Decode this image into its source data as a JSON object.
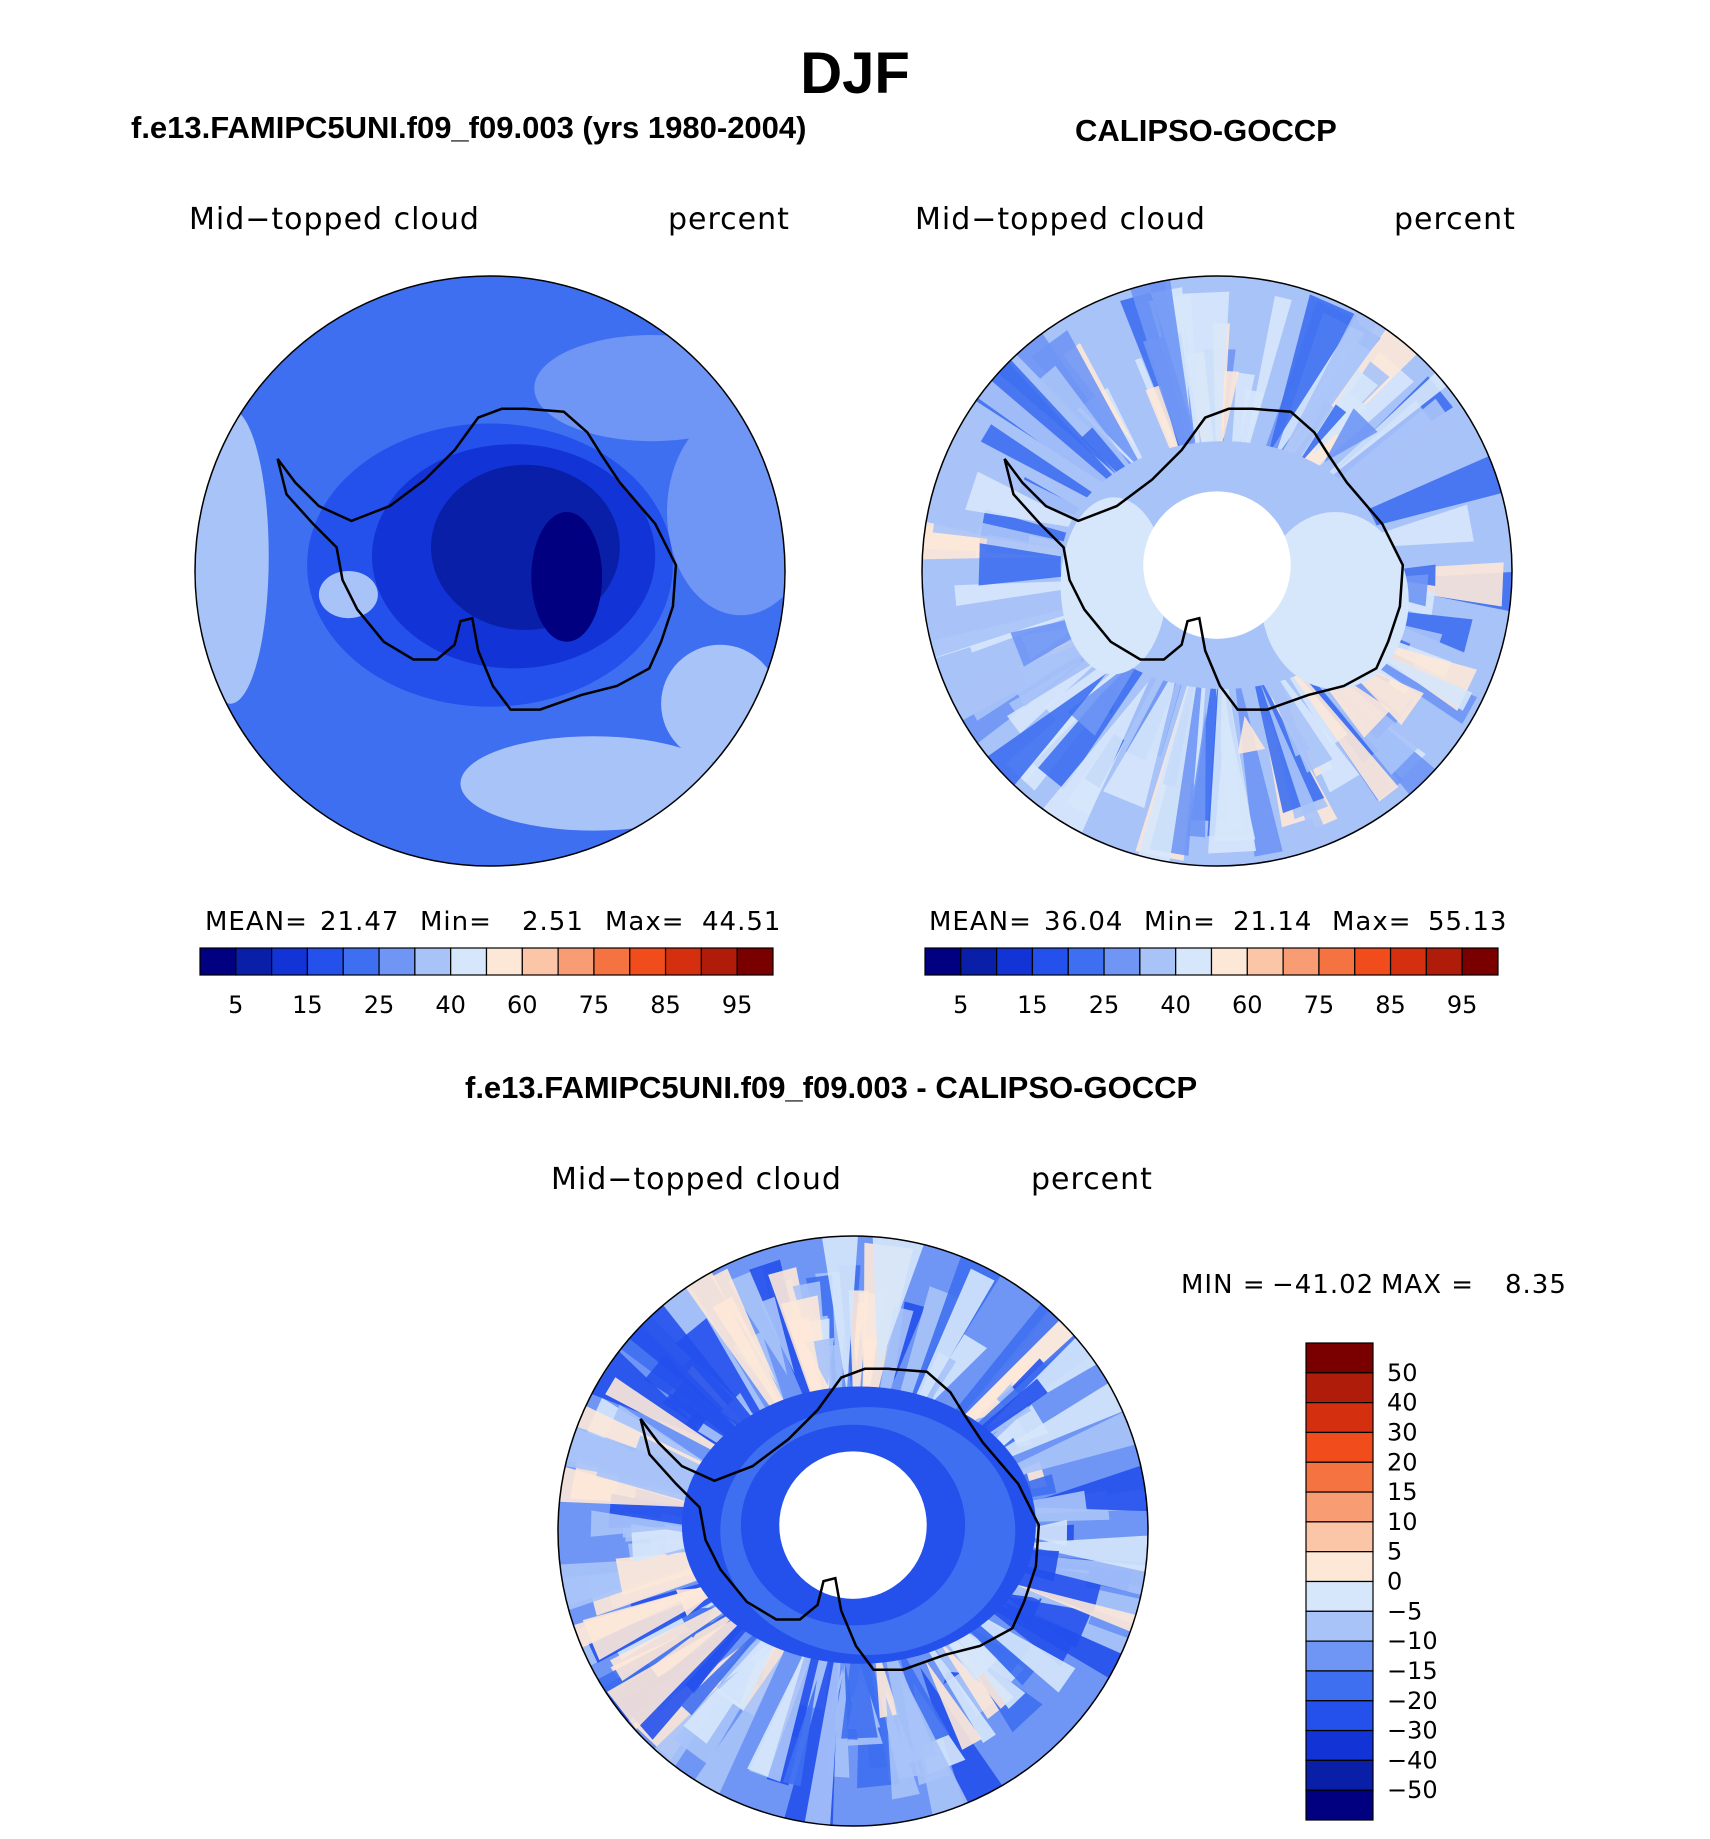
{
  "main_title": "DJF",
  "panels": [
    {
      "title": "f.e13.FAMIPC5UNI.f09_f09.003 (yrs 1980-2004)",
      "variable_label": "Mid−topped cloud",
      "units_label": "percent",
      "stats": {
        "mean_label": "MEAN=",
        "mean": "21.47",
        "min_label": "Min=",
        "min": "2.51",
        "max_label": "Max=",
        "max": "44.51"
      }
    },
    {
      "title": "CALIPSO-GOCCP",
      "variable_label": "Mid−topped cloud",
      "units_label": "percent",
      "stats": {
        "mean_label": "MEAN=",
        "mean": "36.04",
        "min_label": "Min=",
        "min": "21.14",
        "max_label": "Max=",
        "max": "55.13"
      }
    },
    {
      "title": "f.e13.FAMIPC5UNI.f09_f09.003 - CALIPSO-GOCCP",
      "variable_label": "Mid−topped cloud",
      "units_label": "percent",
      "stats": {
        "min_label": "MIN =",
        "min": "−41.02",
        "max_label": "MAX =",
        "max": "8.35"
      }
    }
  ],
  "chart_data": [
    {
      "type": "heatmap",
      "title": "f.e13.FAMIPC5UNI.f09_f09.003 (yrs 1980-2004)",
      "projection": "south polar stereographic",
      "variable": "Mid-topped cloud",
      "units": "percent",
      "mean": 21.47,
      "min": 2.51,
      "max": 44.51,
      "contour_levels": [
        5,
        10,
        15,
        20,
        25,
        30,
        40,
        50,
        60,
        70,
        75,
        80,
        85,
        90,
        95
      ],
      "colorbar_tick_labels": [
        "5",
        "15",
        "25",
        "40",
        "60",
        "75",
        "85",
        "95"
      ],
      "colors": [
        "#000080",
        "#0a1fa8",
        "#1233d6",
        "#2450ec",
        "#3e6ff0",
        "#6f96f5",
        "#a8c3f8",
        "#d6e7fb",
        "#fde8d8",
        "#fbc5a8",
        "#f89c74",
        "#f47340",
        "#f04c1c",
        "#d43010",
        "#b01c0a",
        "#7a0000"
      ]
    },
    {
      "type": "heatmap",
      "title": "CALIPSO-GOCCP",
      "projection": "south polar stereographic",
      "variable": "Mid-topped cloud",
      "units": "percent",
      "mean": 36.04,
      "min": 21.14,
      "max": 55.13,
      "contour_levels": [
        5,
        10,
        15,
        20,
        25,
        30,
        40,
        50,
        60,
        70,
        75,
        80,
        85,
        90,
        95
      ],
      "colorbar_tick_labels": [
        "5",
        "15",
        "25",
        "40",
        "60",
        "75",
        "85",
        "95"
      ],
      "colors": [
        "#000080",
        "#0a1fa8",
        "#1233d6",
        "#2450ec",
        "#3e6ff0",
        "#6f96f5",
        "#a8c3f8",
        "#d6e7fb",
        "#fde8d8",
        "#fbc5a8",
        "#f89c74",
        "#f47340",
        "#f04c1c",
        "#d43010",
        "#b01c0a",
        "#7a0000"
      ]
    },
    {
      "type": "heatmap",
      "title": "f.e13.FAMIPC5UNI.f09_f09.003 - CALIPSO-GOCCP",
      "projection": "south polar stereographic",
      "variable": "Mid-topped cloud",
      "units": "percent",
      "min": -41.02,
      "max": 8.35,
      "contour_levels": [
        50,
        40,
        30,
        20,
        15,
        10,
        5,
        0,
        -5,
        -10,
        -15,
        -20,
        -30,
        -40,
        -50
      ],
      "colorbar_tick_labels": [
        "50",
        "40",
        "30",
        "20",
        "15",
        "10",
        "5",
        "0",
        "−5",
        "−10",
        "−15",
        "−20",
        "−30",
        "−40",
        "−50"
      ],
      "colors": [
        "#7a0000",
        "#b01c0a",
        "#d43010",
        "#f04c1c",
        "#f47340",
        "#f89c74",
        "#fbc5a8",
        "#fde8d8",
        "#d6e7fb",
        "#a8c3f8",
        "#6f96f5",
        "#3e6ff0",
        "#2450ec",
        "#1233d6",
        "#0a1fa8",
        "#000080"
      ]
    }
  ]
}
